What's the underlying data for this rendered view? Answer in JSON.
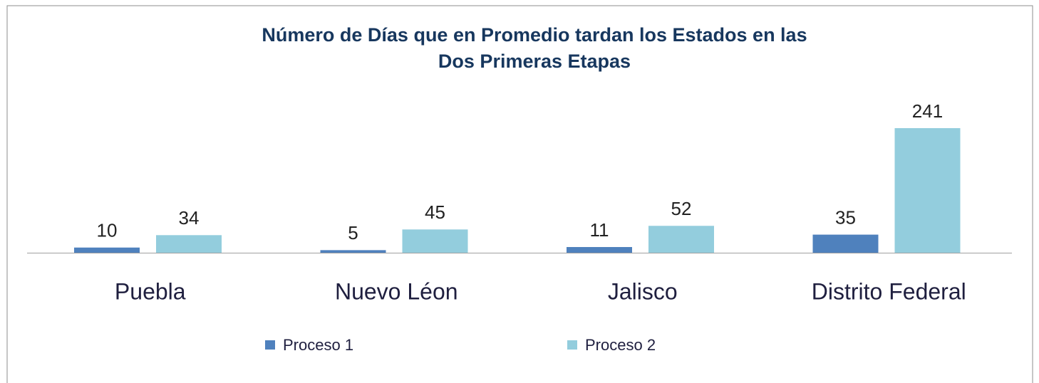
{
  "chart_data": {
    "type": "bar",
    "title": "Número de Días que en Promedio tardan los Estados en las Dos Primeras Etapas",
    "title_lines": [
      "Número de Días que en Promedio tardan los Estados en las",
      "Dos Primeras Etapas"
    ],
    "categories": [
      "Puebla",
      "Nuevo Léon",
      "Jalisco",
      "Distrito Federal"
    ],
    "series": [
      {
        "name": "Proceso 1",
        "color": "#4f81bd",
        "values": [
          10,
          5,
          11,
          35
        ]
      },
      {
        "name": "Proceso 2",
        "color": "#93cddd",
        "values": [
          34,
          45,
          52,
          241
        ]
      }
    ],
    "legend": "bottom"
  }
}
